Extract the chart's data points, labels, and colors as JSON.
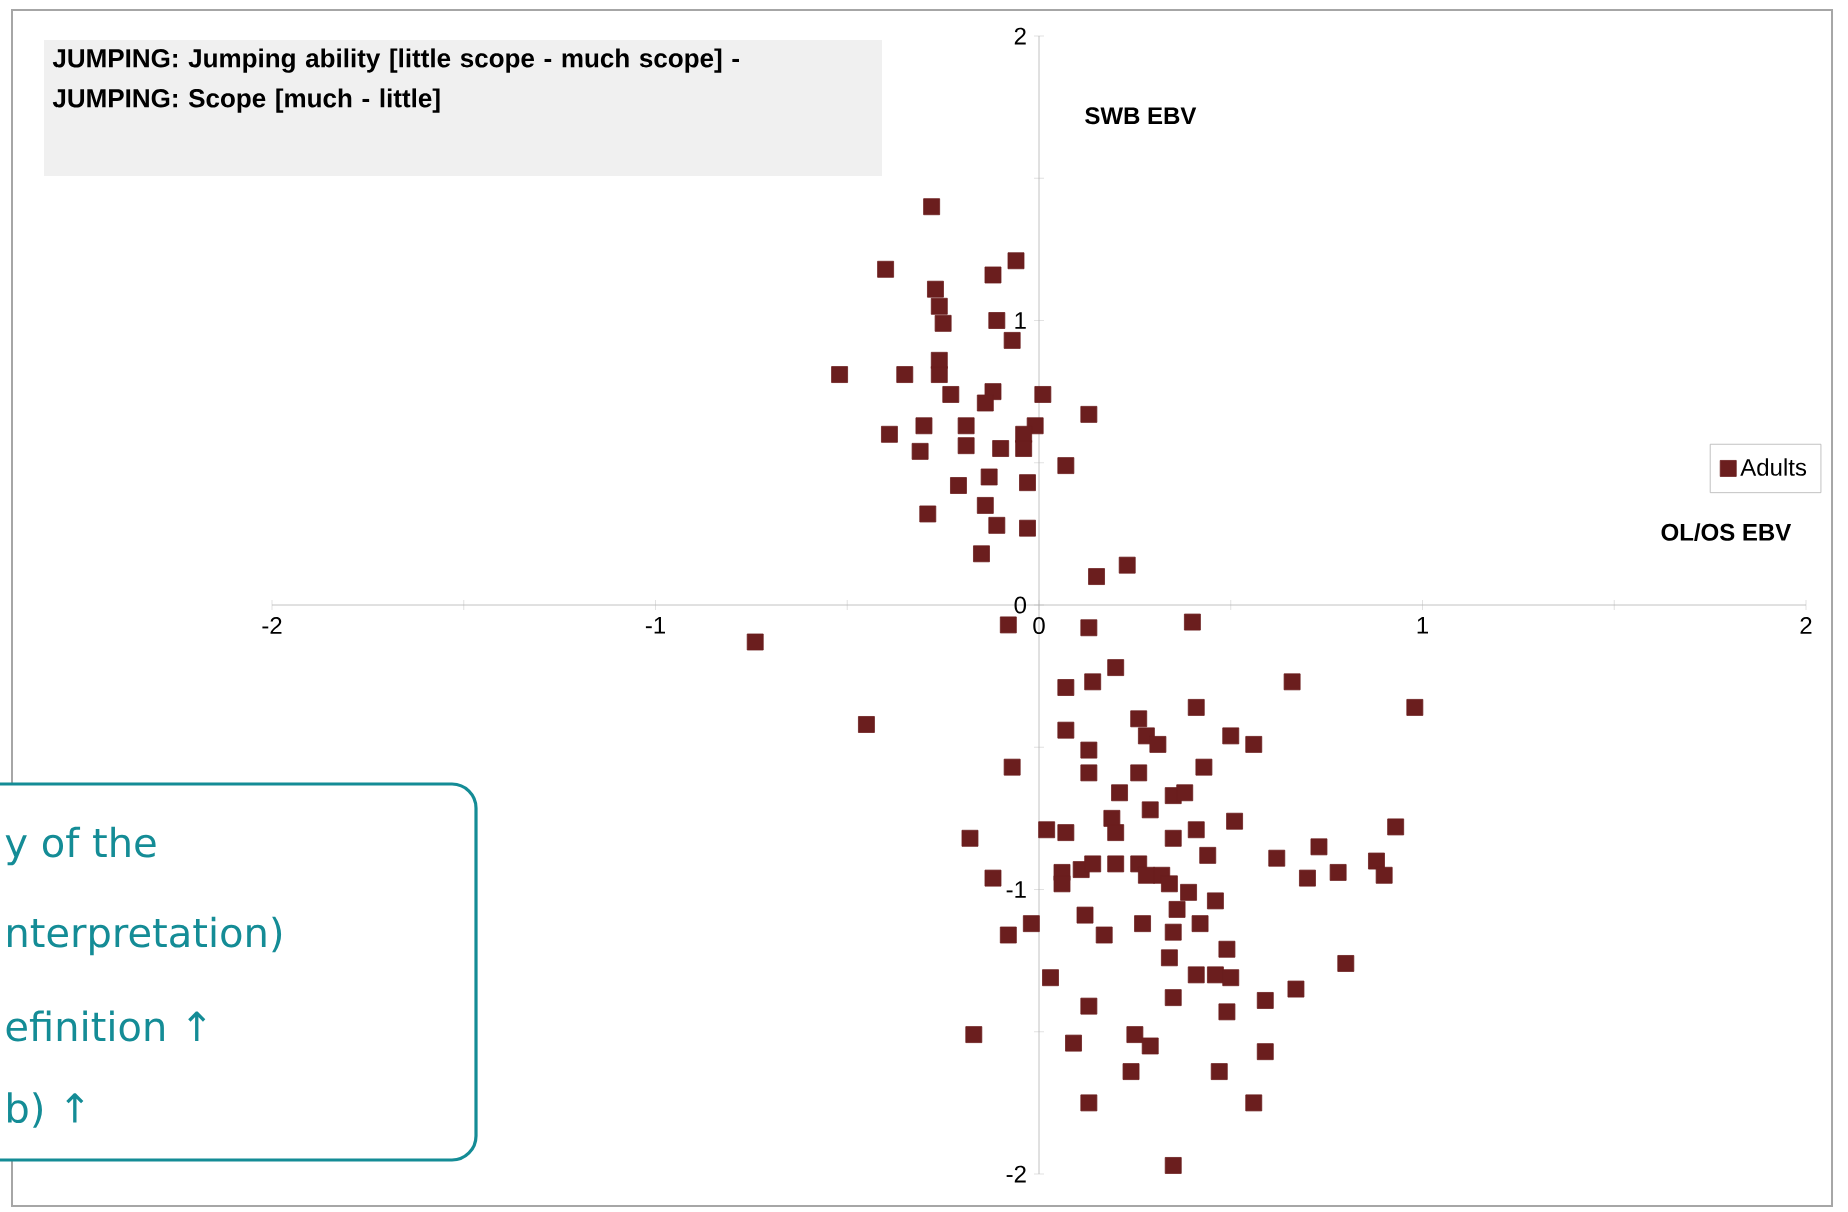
{
  "chart_data": {
    "type": "scatter",
    "title": "JUMPING: Jumping ability [little scope - much scope] - JUMPING: Scope [much - little]",
    "xlabel": "OL/OS EBV",
    "ylabel": "SWB EBV",
    "annotations": [
      "y of the",
      "nterpretation)",
      "efinition ↑",
      "b) ↑"
    ],
    "xlim": [
      -2,
      2
    ],
    "ylim": [
      -2,
      2
    ],
    "xticks": [
      -2,
      {
        "value": -1.5,
        "label": null
      },
      -1,
      {
        "value": -0.5,
        "label": null
      },
      0,
      {
        "value": 0.5,
        "label": null
      },
      1,
      {
        "value": 1.5,
        "label": null
      },
      2
    ],
    "yticks": [
      -2,
      {
        "value": -1.5,
        "label": null
      },
      -1,
      {
        "value": -0.5,
        "label": null
      },
      0,
      {
        "value": 0.5,
        "label": null
      },
      1,
      {
        "value": 1.5,
        "label": null
      },
      2
    ],
    "grid": false,
    "legend": "right",
    "marker": "square",
    "series": [
      {
        "name": "Adults",
        "color": "#6b1e1e",
        "x": [
          -0.28,
          -0.4,
          -0.06,
          -0.12,
          -0.27,
          -0.26,
          -0.25,
          -0.11,
          -0.07,
          -0.52,
          -0.35,
          -0.26,
          -0.26,
          -0.23,
          -0.12,
          -0.14,
          0.01,
          0.13,
          -0.39,
          -0.3,
          -0.31,
          -0.19,
          -0.19,
          -0.1,
          -0.01,
          -0.04,
          -0.04,
          0.07,
          -0.21,
          -0.13,
          -0.03,
          -0.29,
          -0.14,
          -0.11,
          -0.03,
          -0.15,
          0.15,
          0.23,
          -0.74,
          -0.08,
          -0.45,
          0.13,
          0.4,
          0.2,
          0.07,
          0.14,
          0.66,
          0.41,
          0.98,
          0.07,
          0.26,
          0.28,
          0.31,
          0.13,
          0.5,
          0.56,
          -0.07,
          0.13,
          0.26,
          0.43,
          0.21,
          0.35,
          0.38,
          0.29,
          0.19,
          0.2,
          0.51,
          0.41,
          0.35,
          0.02,
          0.07,
          -0.18,
          0.44,
          0.93,
          0.73,
          0.62,
          -0.12,
          0.06,
          0.06,
          0.11,
          0.14,
          0.2,
          0.26,
          0.28,
          0.32,
          0.34,
          0.39,
          0.36,
          0.46,
          0.7,
          0.78,
          0.88,
          0.9,
          -0.08,
          -0.02,
          0.12,
          0.17,
          0.27,
          0.35,
          0.42,
          0.34,
          0.49,
          0.8,
          0.03,
          0.41,
          0.46,
          0.5,
          0.67,
          0.59,
          0.35,
          0.13,
          0.49,
          -0.17,
          0.09,
          0.25,
          0.29,
          0.59,
          0.24,
          0.47,
          0.13,
          0.56,
          0.35
        ],
        "values": [
          1.4,
          1.18,
          1.21,
          1.16,
          1.11,
          1.05,
          0.99,
          1.0,
          0.93,
          0.81,
          0.81,
          0.86,
          0.81,
          0.74,
          0.75,
          0.71,
          0.74,
          0.67,
          0.6,
          0.63,
          0.54,
          0.63,
          0.56,
          0.55,
          0.63,
          0.6,
          0.55,
          0.49,
          0.42,
          0.45,
          0.43,
          0.32,
          0.35,
          0.28,
          0.27,
          0.18,
          0.1,
          0.14,
          -0.13,
          -0.07,
          -0.42,
          -0.08,
          -0.06,
          -0.22,
          -0.29,
          -0.27,
          -0.27,
          -0.36,
          -0.36,
          -0.44,
          -0.4,
          -0.46,
          -0.49,
          -0.51,
          -0.46,
          -0.49,
          -0.57,
          -0.59,
          -0.59,
          -0.57,
          -0.66,
          -0.67,
          -0.66,
          -0.72,
          -0.75,
          -0.8,
          -0.76,
          -0.79,
          -0.82,
          -0.79,
          -0.8,
          -0.82,
          -0.88,
          -0.78,
          -0.85,
          -0.89,
          -0.96,
          -0.94,
          -0.98,
          -0.93,
          -0.91,
          -0.91,
          -0.91,
          -0.95,
          -0.95,
          -0.98,
          -1.01,
          -1.07,
          -1.04,
          -0.96,
          -0.94,
          -0.9,
          -0.95,
          -1.16,
          -1.12,
          -1.09,
          -1.16,
          -1.12,
          -1.15,
          -1.12,
          -1.24,
          -1.21,
          -1.26,
          -1.31,
          -1.3,
          -1.3,
          -1.31,
          -1.35,
          -1.39,
          -1.38,
          -1.41,
          -1.43,
          -1.51,
          -1.54,
          -1.51,
          -1.55,
          -1.57,
          -1.64,
          -1.64,
          -1.75,
          -1.75,
          -1.97
        ]
      }
    ]
  }
}
